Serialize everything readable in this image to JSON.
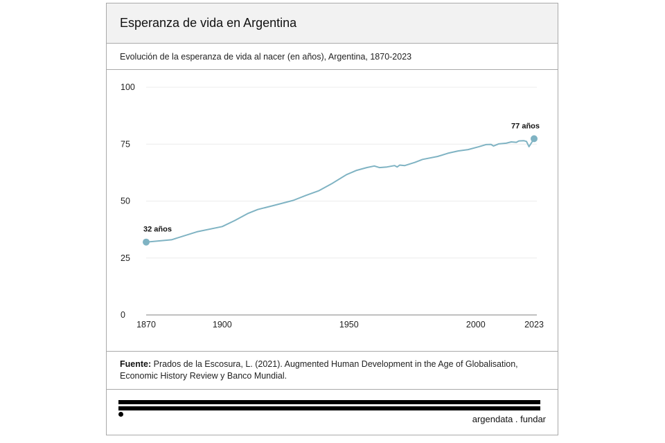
{
  "header": {
    "title": "Esperanza de vida en Argentina",
    "subtitle": "Evolución de la esperanza de vida al nacer (en años), Argentina, 1870-2023"
  },
  "source": {
    "label": "Fuente:",
    "text": "Prados de la Escosura, L. (2021). Augmented Human Development in the Age of Globalisation, Economic History Review y Banco Mundial."
  },
  "footer": {
    "brand": "argendata . fundar"
  },
  "colors": {
    "line": "#7fb3c3",
    "grid": "#ececec",
    "axis": "#9a9a9a"
  },
  "chart_data": {
    "type": "line",
    "title": "Esperanza de vida en Argentina",
    "subtitle": "Evolución de la esperanza de vida al nacer (en años), Argentina, 1870-2023",
    "xlabel": "",
    "ylabel": "",
    "xlim": [
      1870,
      2023
    ],
    "ylim": [
      0,
      100
    ],
    "grid": true,
    "x_ticks": [
      1870,
      1900,
      1950,
      2000,
      2023
    ],
    "y_ticks": [
      0,
      25,
      50,
      75,
      100
    ],
    "series": [
      {
        "name": "Esperanza de vida al nacer",
        "x": [
          1870,
          1880,
          1890,
          1900,
          1905,
          1910,
          1914,
          1920,
          1928,
          1933,
          1938,
          1943,
          1949,
          1953,
          1957,
          1960,
          1962,
          1965,
          1968,
          1969,
          1970,
          1972,
          1976,
          1979,
          1985,
          1989,
          1993,
          1997,
          2001,
          2004,
          2006,
          2007,
          2009,
          2012,
          2014,
          2016,
          2017,
          2019,
          2020,
          2021,
          2023
        ],
        "values": [
          32.0,
          33.0,
          36.5,
          38.8,
          41.5,
          44.5,
          46.3,
          48.0,
          50.3,
          52.5,
          54.5,
          57.5,
          61.6,
          63.5,
          64.7,
          65.4,
          64.7,
          65.0,
          65.6,
          65.0,
          65.8,
          65.6,
          67.0,
          68.3,
          69.6,
          71.0,
          72.0,
          72.6,
          73.8,
          74.8,
          74.9,
          74.2,
          75.1,
          75.4,
          76.0,
          75.8,
          76.4,
          76.5,
          76.2,
          73.9,
          77.4
        ]
      }
    ],
    "annotations": [
      {
        "x": 1870,
        "y": 32.0,
        "label": "32 años"
      },
      {
        "x": 2023,
        "y": 77.4,
        "label": "77 años"
      }
    ]
  }
}
